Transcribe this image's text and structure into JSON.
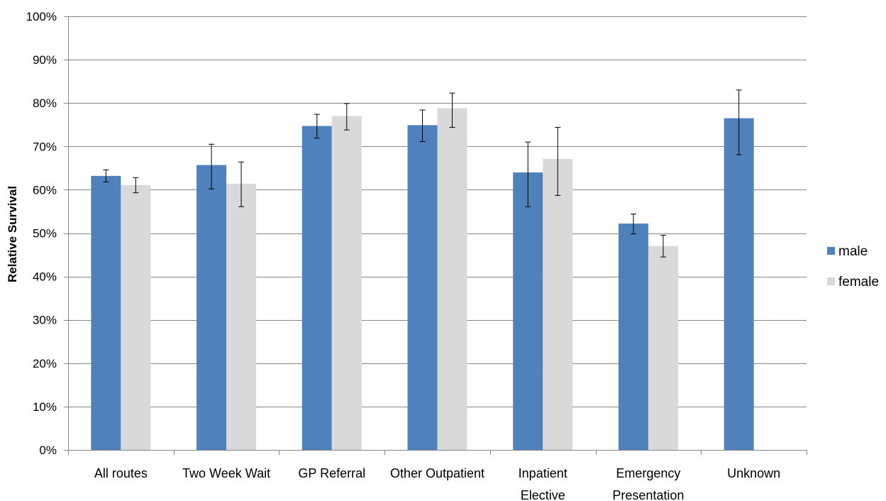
{
  "chart_data": {
    "type": "bar",
    "ylabel": "Relative Survival",
    "xlabel": "",
    "ylim": [
      0,
      100
    ],
    "ytick_step": 10,
    "y_unit": "%",
    "grid": "horizontal",
    "legend_position": "right",
    "categories": [
      [
        "All routes"
      ],
      [
        "Two Week Wait"
      ],
      [
        "GP Referral"
      ],
      [
        "Other Outpatient"
      ],
      [
        "Inpatient",
        "Elective"
      ],
      [
        "Emergency",
        "Presentation"
      ],
      [
        "Unknown"
      ]
    ],
    "series": [
      {
        "name": "male",
        "color": "#4F81BD",
        "values": [
          63.2,
          65.7,
          74.7,
          74.9,
          64.0,
          52.2,
          76.5
        ],
        "error_low": [
          61.8,
          60.2,
          71.9,
          71.1,
          56.1,
          49.8,
          68.1
        ],
        "error_high": [
          64.6,
          70.5,
          77.4,
          78.4,
          71.0,
          54.4,
          83.0
        ]
      },
      {
        "name": "female",
        "color": "#D9D9D9",
        "values": [
          61.1,
          61.4,
          77.0,
          78.8,
          67.1,
          47.0,
          null
        ],
        "error_low": [
          59.3,
          56.1,
          73.8,
          74.4,
          58.7,
          44.5,
          null
        ],
        "error_high": [
          62.8,
          66.4,
          79.9,
          82.3,
          74.4,
          49.5,
          null
        ]
      }
    ]
  }
}
